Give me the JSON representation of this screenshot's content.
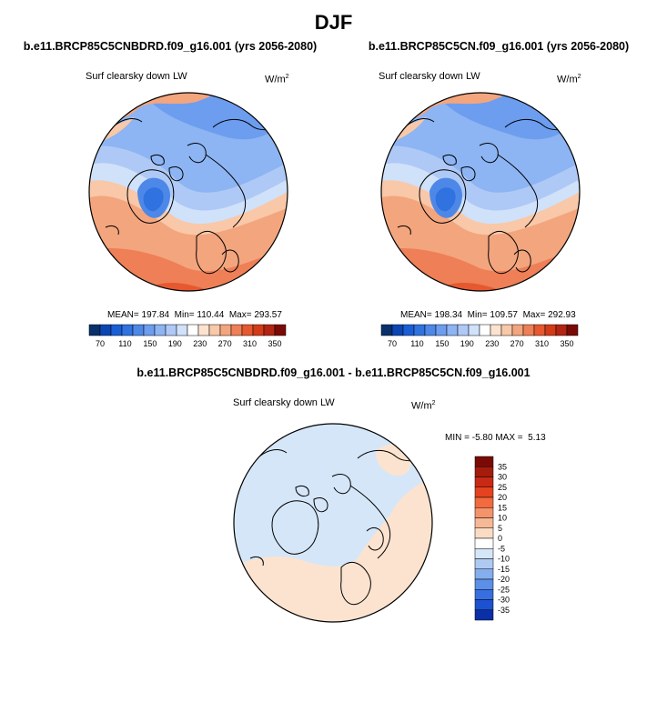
{
  "figure": {
    "title": "DJF"
  },
  "chart_data": [
    {
      "type": "heatmap",
      "projection": "polar stereographic (north pole)",
      "title": "b.e11.BRCP85C5CNBDRD.f09_g16.001 (yrs 2056-2080)",
      "variable": "Surf clearsky down LW",
      "units": "W/m",
      "units_exp": "2",
      "stats": {
        "mean_label": "MEAN=",
        "mean": "197.84",
        "min_label": "Min=",
        "min": "110.44",
        "max_label": "Max=",
        "max": "293.57"
      },
      "colorbar": {
        "orientation": "horizontal",
        "tick_labels": [
          "70",
          "110",
          "150",
          "190",
          "230",
          "270",
          "310",
          "350"
        ],
        "colors": [
          "#08306b",
          "#0c46b4",
          "#1a5ed6",
          "#2f72e0",
          "#4d88e8",
          "#6c9def",
          "#8db4f3",
          "#afc9f6",
          "#d0e1fa",
          "#ffffff",
          "#fce3cf",
          "#f8c8a8",
          "#f3a57e",
          "#ee7f56",
          "#e6582f",
          "#d33b18",
          "#b22512",
          "#7a0a05"
        ]
      },
      "grid": false,
      "legend": "colorbar-bottom"
    },
    {
      "type": "heatmap",
      "projection": "polar stereographic (north pole)",
      "title": "b.e11.BRCP85C5CN.f09_g16.001 (yrs 2056-2080)",
      "variable": "Surf clearsky down LW",
      "units": "W/m",
      "units_exp": "2",
      "stats": {
        "mean_label": "MEAN=",
        "mean": "198.34",
        "min_label": "Min=",
        "min": "109.57",
        "max_label": "Max=",
        "max": "292.93"
      },
      "colorbar": {
        "orientation": "horizontal",
        "tick_labels": [
          "70",
          "110",
          "150",
          "190",
          "230",
          "270",
          "310",
          "350"
        ],
        "colors": [
          "#08306b",
          "#0c46b4",
          "#1a5ed6",
          "#2f72e0",
          "#4d88e8",
          "#6c9def",
          "#8db4f3",
          "#afc9f6",
          "#d0e1fa",
          "#ffffff",
          "#fce3cf",
          "#f8c8a8",
          "#f3a57e",
          "#ee7f56",
          "#e6582f",
          "#d33b18",
          "#b22512",
          "#7a0a05"
        ]
      },
      "grid": false,
      "legend": "colorbar-bottom"
    },
    {
      "type": "heatmap",
      "projection": "polar stereographic (north pole)",
      "title": "b.e11.BRCP85C5CNBDRD.f09_g16.001 - b.e11.BRCP85C5CN.f09_g16.001",
      "variable": "Surf clearsky down LW",
      "units": "W/m",
      "units_exp": "2",
      "stats": {
        "min_label": "MIN =",
        "min": "-5.80",
        "max_label": "MAX =",
        "max": "5.13"
      },
      "colorbar": {
        "orientation": "vertical",
        "tick_labels": [
          "35",
          "30",
          "25",
          "20",
          "15",
          "10",
          "5",
          "0",
          "-5",
          "-10",
          "-15",
          "-20",
          "-25",
          "-30",
          "-35"
        ],
        "colors": [
          "#7a0a05",
          "#a51c0d",
          "#c92a13",
          "#e5421f",
          "#f26a3d",
          "#f5936a",
          "#f7b896",
          "#fadcc4",
          "#ffffff",
          "#d5e6f8",
          "#aecaf2",
          "#84aeee",
          "#5b8fe8",
          "#386fe0",
          "#1c52d2",
          "#0a2fa6"
        ]
      },
      "grid": false,
      "legend": "colorbar-right"
    }
  ]
}
